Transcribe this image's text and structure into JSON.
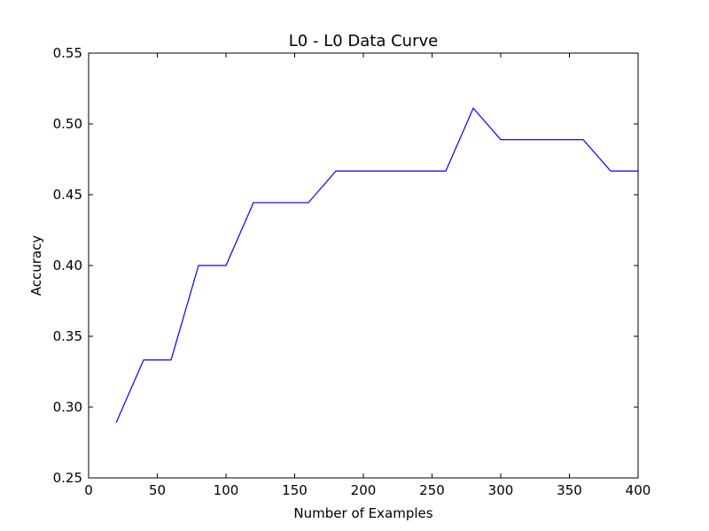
{
  "chart_data": {
    "type": "line",
    "title": "L0 - L0 Data Curve",
    "xlabel": "Number of Examples",
    "ylabel": "Accuracy",
    "xlim": [
      0,
      400
    ],
    "ylim": [
      0.25,
      0.55
    ],
    "xticks": [
      0,
      50,
      100,
      150,
      200,
      250,
      300,
      350,
      400
    ],
    "yticks": [
      0.25,
      0.3,
      0.35,
      0.4,
      0.45,
      0.5,
      0.55
    ],
    "xtick_labels": [
      "0",
      "50",
      "100",
      "150",
      "200",
      "250",
      "300",
      "350",
      "400"
    ],
    "ytick_labels": [
      "0.25",
      "0.30",
      "0.35",
      "0.40",
      "0.45",
      "0.50",
      "0.55"
    ],
    "grid": false,
    "legend": "none",
    "series": [
      {
        "color": "#0000ff",
        "x": [
          20,
          40,
          60,
          80,
          100,
          120,
          140,
          160,
          180,
          200,
          220,
          240,
          260,
          280,
          300,
          320,
          340,
          360,
          380,
          400
        ],
        "y": [
          0.2889,
          0.3333,
          0.3333,
          0.4,
          0.4,
          0.4444,
          0.4444,
          0.4444,
          0.4667,
          0.4667,
          0.4667,
          0.4667,
          0.4667,
          0.5111,
          0.4889,
          0.4889,
          0.4889,
          0.4889,
          0.4667,
          0.4667
        ]
      }
    ]
  }
}
